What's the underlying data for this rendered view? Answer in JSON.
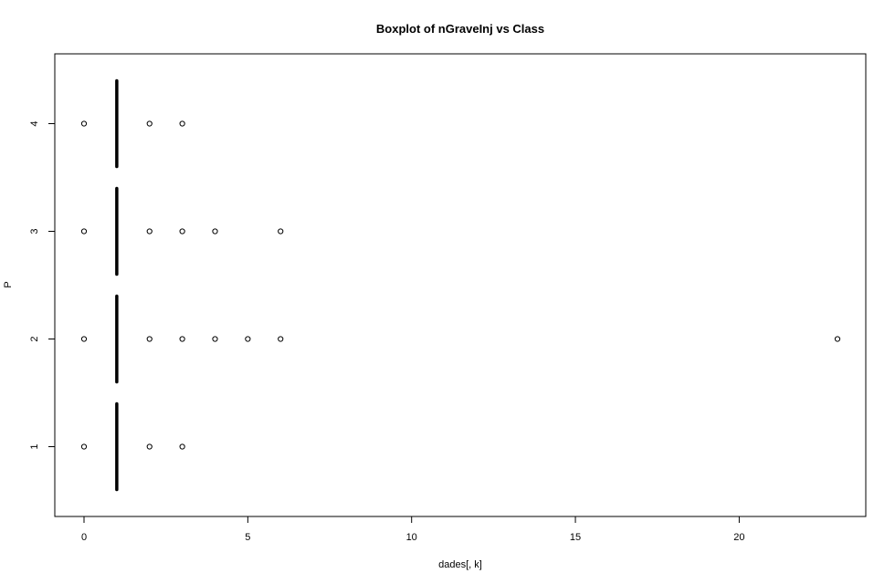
{
  "chart_data": {
    "type": "boxplot",
    "orientation": "horizontal",
    "title": "Boxplot of nGraveInj vs Class",
    "xlabel": "dades[, k]",
    "ylabel": "P",
    "xlim": [
      0,
      23
    ],
    "x_ticks": [
      0,
      5,
      10,
      15,
      20
    ],
    "categories": [
      "1",
      "2",
      "3",
      "4"
    ],
    "grid": false,
    "legend": "none",
    "series": [
      {
        "category": "1",
        "median": 1,
        "q1": 1,
        "q3": 1,
        "whisker_low": 1,
        "whisker_high": 1,
        "outliers": [
          0,
          2,
          3
        ]
      },
      {
        "category": "2",
        "median": 1,
        "q1": 1,
        "q3": 1,
        "whisker_low": 1,
        "whisker_high": 1,
        "outliers": [
          0,
          2,
          3,
          4,
          5,
          6,
          23
        ]
      },
      {
        "category": "3",
        "median": 1,
        "q1": 1,
        "q3": 1,
        "whisker_low": 1,
        "whisker_high": 1,
        "outliers": [
          0,
          2,
          3,
          4,
          6
        ]
      },
      {
        "category": "4",
        "median": 1,
        "q1": 1,
        "q3": 1,
        "whisker_low": 1,
        "whisker_high": 1,
        "outliers": [
          0,
          2,
          3
        ]
      }
    ]
  }
}
